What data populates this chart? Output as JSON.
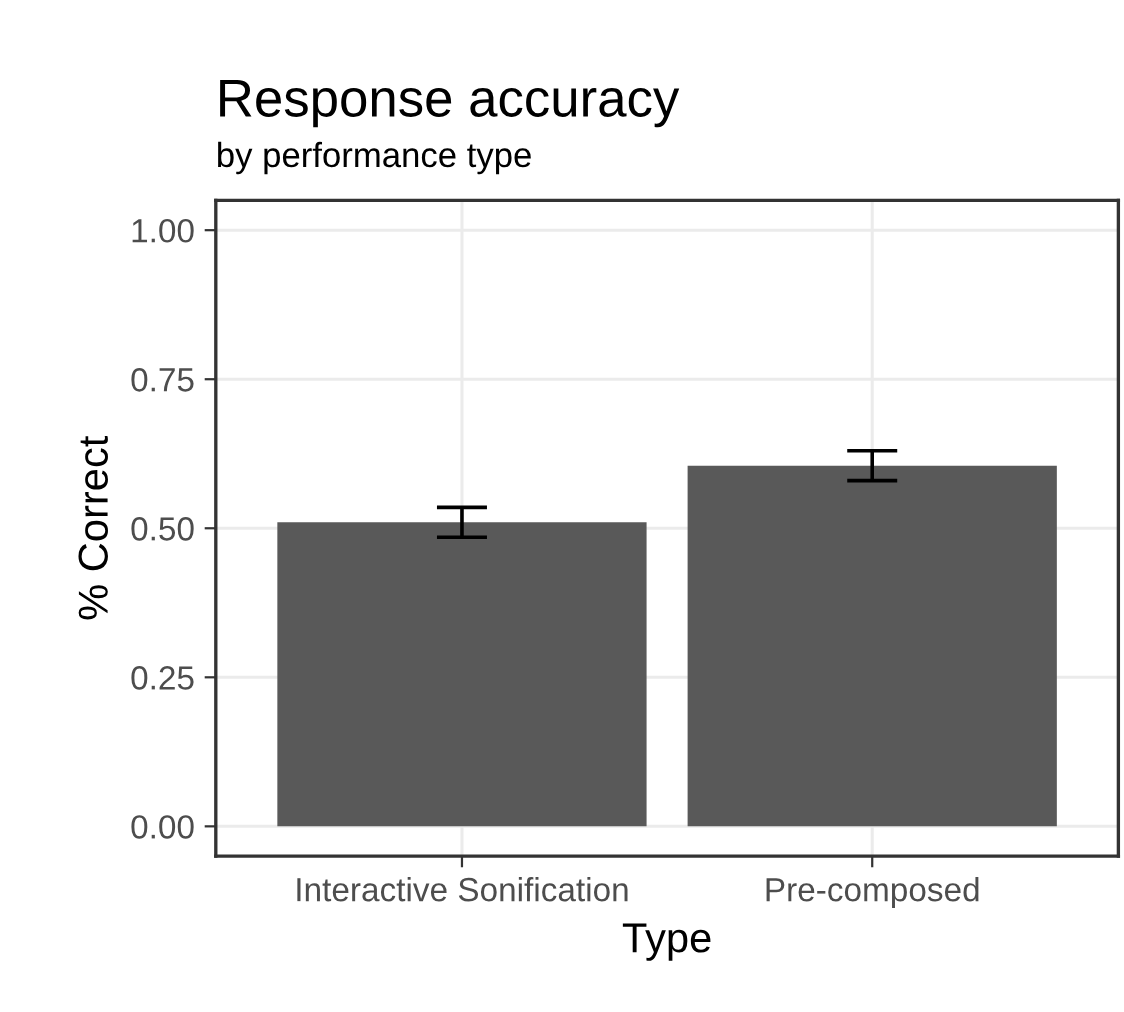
{
  "chart_data": {
    "type": "bar",
    "title": "Response accuracy",
    "subtitle": "by performance type",
    "xlabel": "Type",
    "ylabel": "% Correct",
    "categories": [
      "Interactive Sonification",
      "Pre-composed"
    ],
    "values": [
      0.51,
      0.605
    ],
    "errors": [
      0.025,
      0.025
    ],
    "color": "#595959",
    "ylim": [
      -0.05,
      1.05
    ],
    "yticks": [
      {
        "value": 0,
        "label": "0.00"
      },
      {
        "value": 0.25,
        "label": "0.25"
      },
      {
        "value": 0.5,
        "label": "0.50"
      },
      {
        "value": 0.75,
        "label": "0.75"
      },
      {
        "value": 1,
        "label": "1.00"
      }
    ],
    "grid": true
  }
}
